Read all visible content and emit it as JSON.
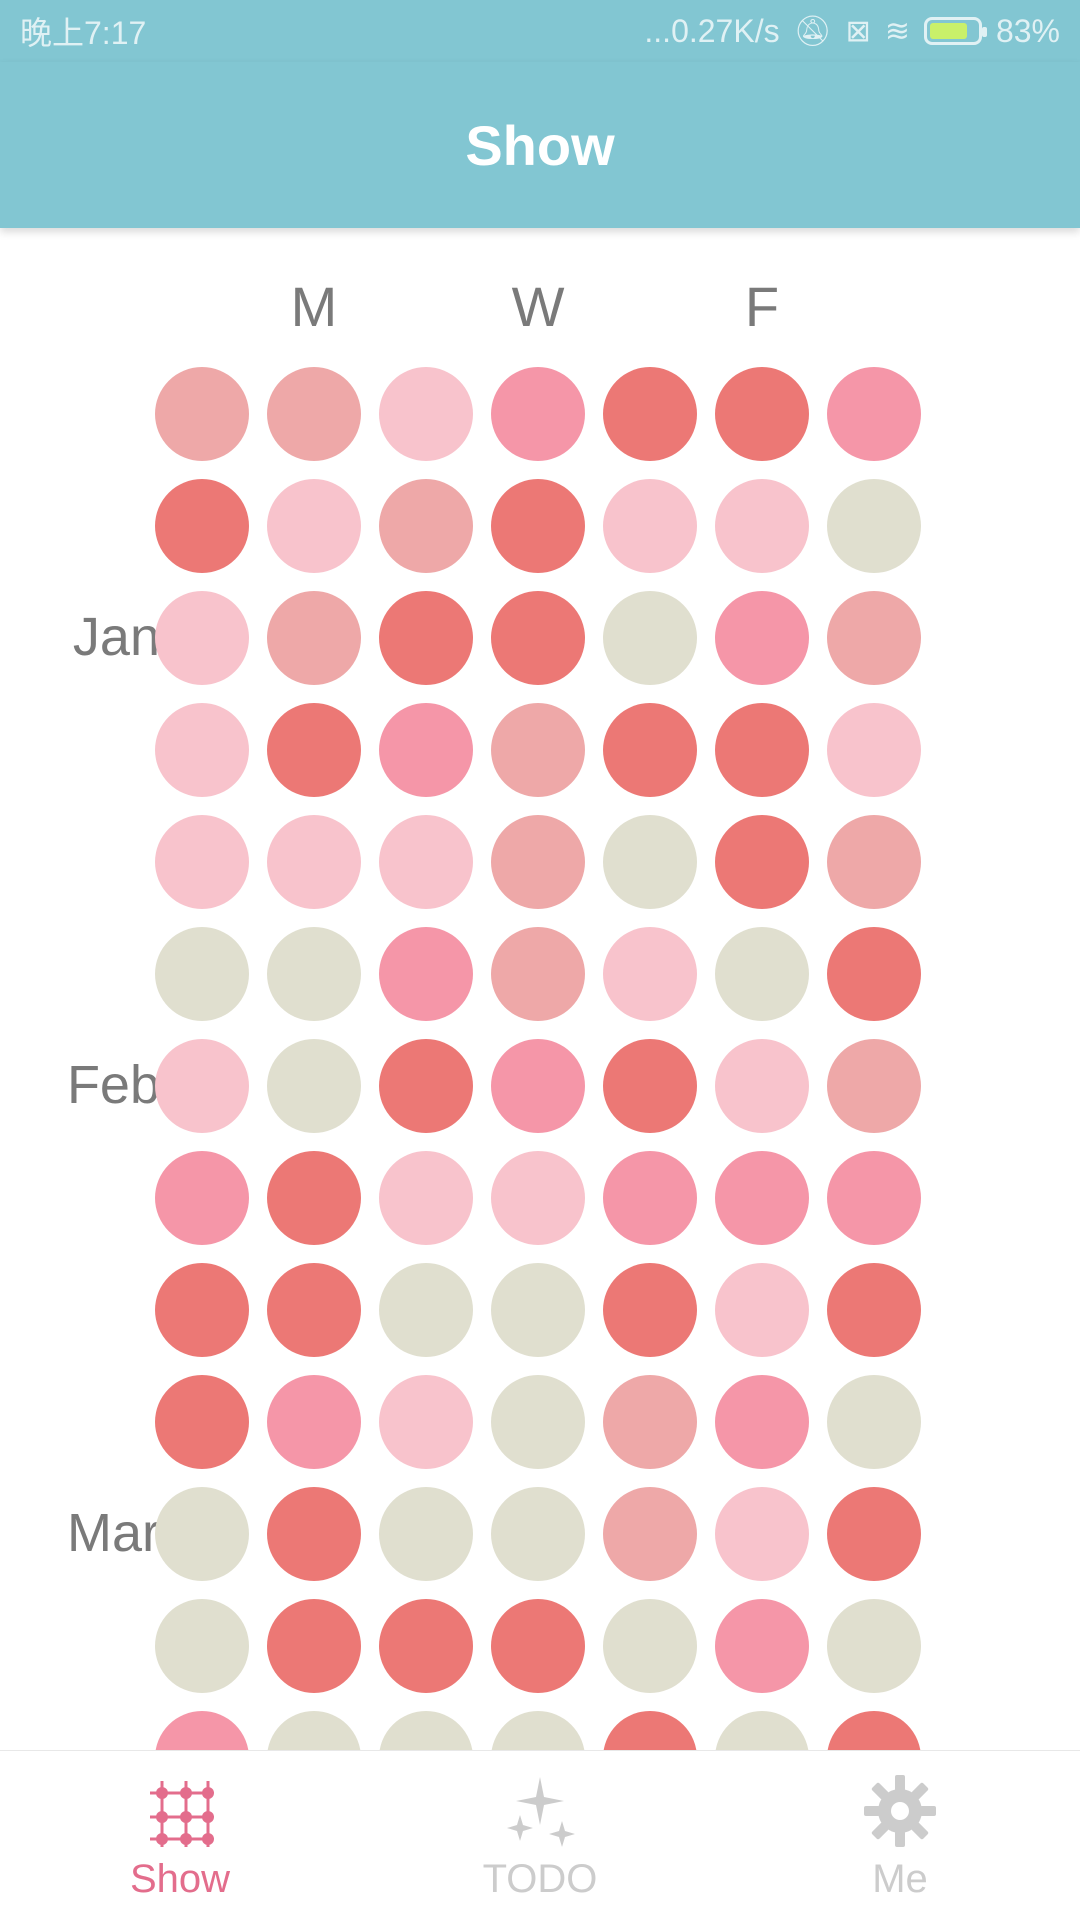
{
  "status_bar": {
    "time": "晚上7:17",
    "network_speed": "...0.27K/s",
    "battery_percent": "83%",
    "battery_level": 0.83
  },
  "header": {
    "title": "Show"
  },
  "grid": {
    "day_labels": [
      "M",
      "W",
      "F"
    ],
    "month_labels": [
      "Jan",
      "Feb",
      "Mar"
    ],
    "colors": {
      "0": "#e0dfcf",
      "1": "#f8c3cc",
      "2": "#eea8a8",
      "3": "#f596a8",
      "4": "#ec7875"
    },
    "rows": [
      [
        2,
        2,
        1,
        3,
        4,
        4,
        3
      ],
      [
        4,
        1,
        2,
        4,
        1,
        1,
        0
      ],
      [
        1,
        2,
        4,
        4,
        0,
        3,
        2
      ],
      [
        1,
        4,
        3,
        2,
        4,
        4,
        1
      ],
      [
        1,
        1,
        1,
        2,
        0,
        4,
        2
      ],
      [
        0,
        0,
        3,
        2,
        1,
        0,
        4
      ],
      [
        1,
        0,
        4,
        3,
        4,
        1,
        2
      ],
      [
        3,
        4,
        1,
        1,
        3,
        3,
        3
      ],
      [
        4,
        4,
        0,
        0,
        4,
        1,
        4
      ],
      [
        4,
        3,
        1,
        0,
        2,
        3,
        0
      ],
      [
        0,
        4,
        0,
        0,
        2,
        1,
        4
      ],
      [
        0,
        4,
        4,
        4,
        0,
        3,
        0
      ],
      [
        3,
        0,
        0,
        0,
        4,
        0,
        4
      ]
    ]
  },
  "bottom_nav": {
    "items": [
      {
        "label": "Show",
        "icon": "grid-network-icon",
        "active": true
      },
      {
        "label": "TODO",
        "icon": "sparkle-icon",
        "active": false
      },
      {
        "label": "Me",
        "icon": "gear-icon",
        "active": false
      }
    ]
  }
}
